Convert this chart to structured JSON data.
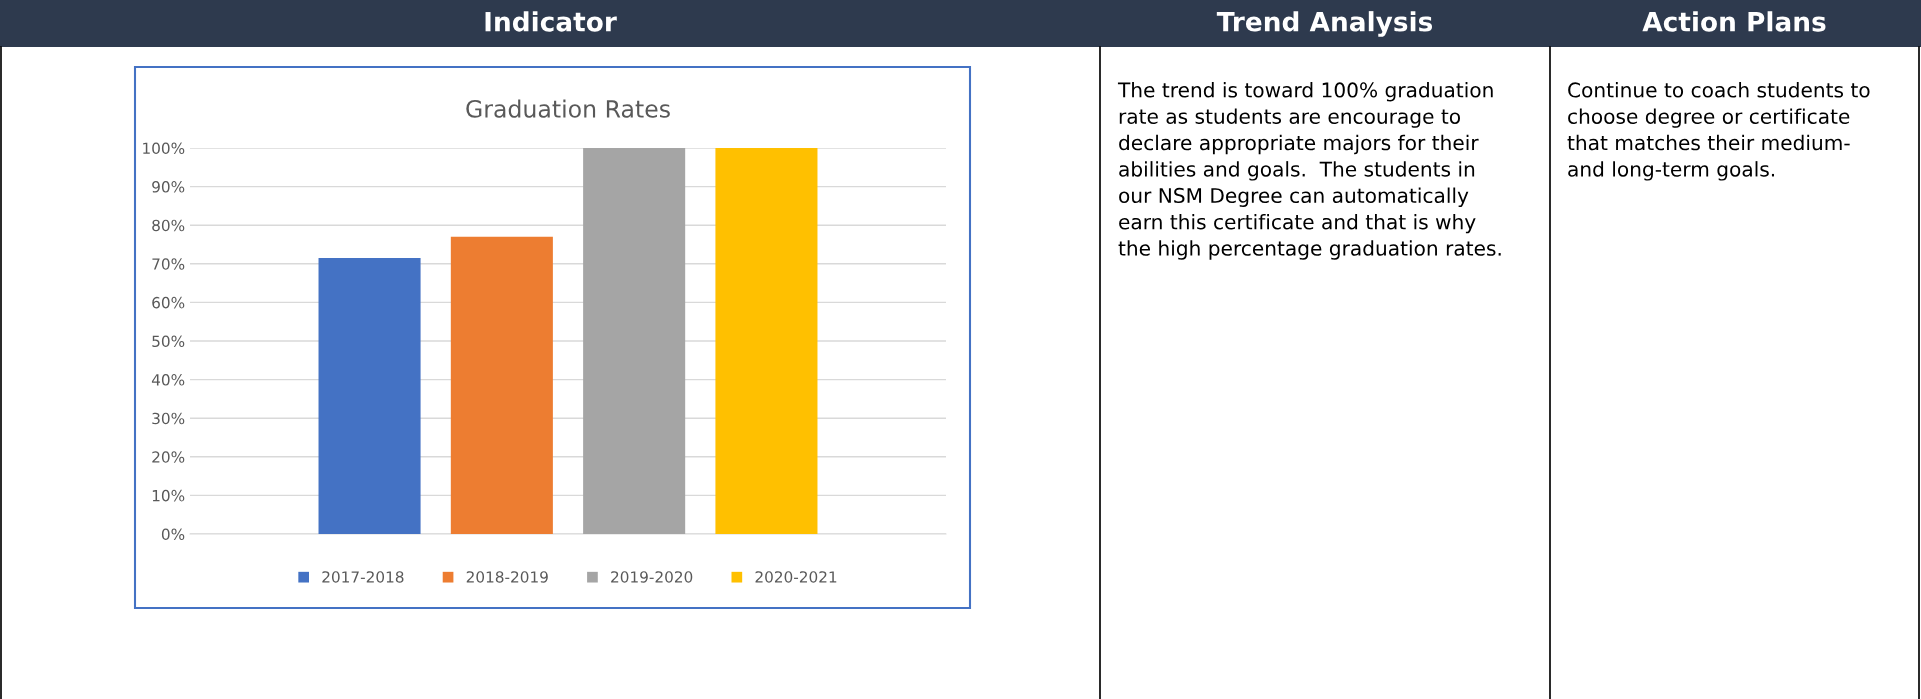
{
  "chart_data": {
    "type": "bar",
    "title": "Graduation Rates",
    "categories": [
      null
    ],
    "series": [
      {
        "name": "2017-2018",
        "color": "#4472c4",
        "values": [
          71.5
        ]
      },
      {
        "name": "2018-2019",
        "color": "#ed7d31",
        "values": [
          77
        ]
      },
      {
        "name": "2019-2020",
        "color": "#a5a5a5",
        "values": [
          100
        ]
      },
      {
        "name": "2020-2021",
        "color": "#ffc000",
        "values": [
          100
        ]
      }
    ],
    "ylim": [
      0,
      100
    ],
    "yticks": [
      {
        "value": 0,
        "label": "0%"
      },
      {
        "value": 10,
        "label": "10%"
      },
      {
        "value": 20,
        "label": "20%"
      },
      {
        "value": 30,
        "label": "30%"
      },
      {
        "value": 40,
        "label": "40%"
      },
      {
        "value": 50,
        "label": "50%"
      },
      {
        "value": 60,
        "label": "60%"
      },
      {
        "value": 70,
        "label": "70%"
      },
      {
        "value": 80,
        "label": "80%"
      },
      {
        "value": 90,
        "label": "90%"
      },
      {
        "value": 100,
        "label": "100%"
      }
    ],
    "grid": "y",
    "legend": "bottom",
    "tick_labels": "y",
    "annotations": [
      "Indicator",
      "Trend Analysis",
      "Action Plans",
      "The trend is toward 100% graduation\nrate as students are encourage to\ndeclare appropriate majors for their\nabilities and goals.  The students in\nour NSM Degree can automatically\nearn this certificate and that is why\nthe high percentage graduation rates.",
      "Continue to coach students to\nchoose degree or certificate\nthat matches their medium-\nand long-term goals."
    ]
  }
}
